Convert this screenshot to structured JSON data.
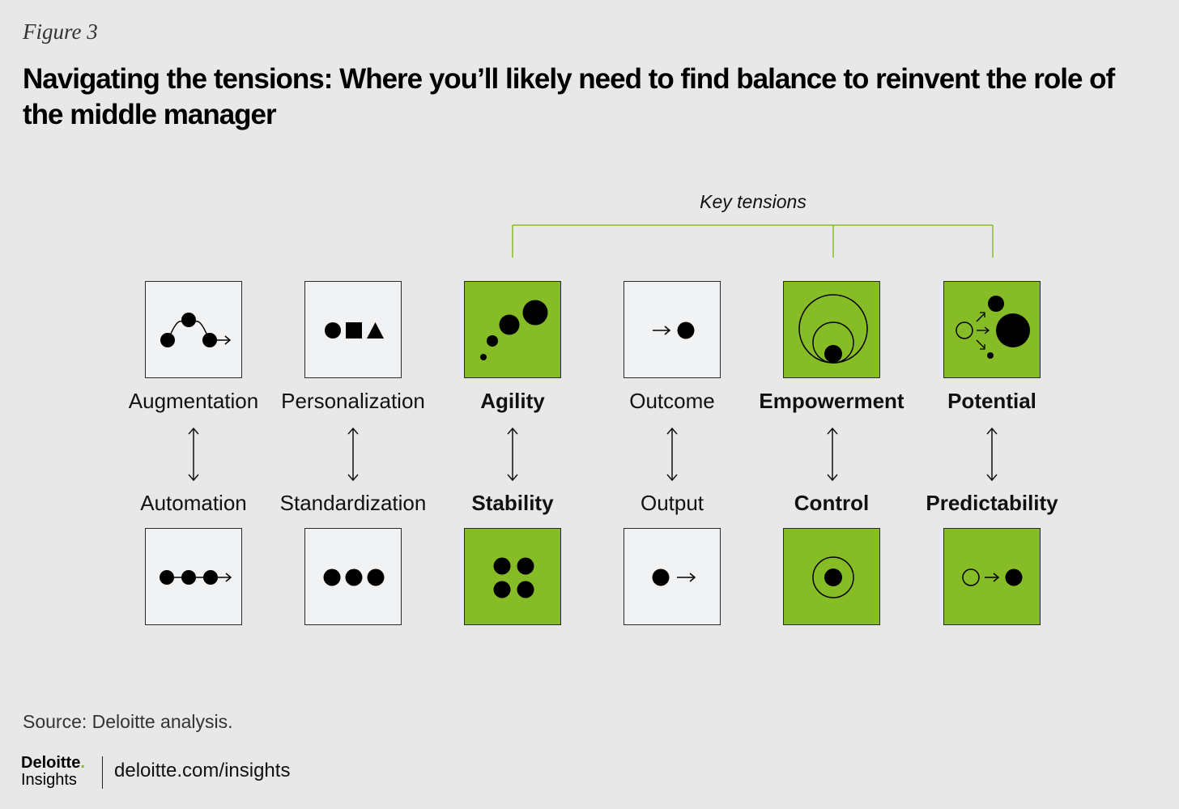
{
  "figure_label": "Figure 3",
  "title": "Navigating the tensions: Where you’ll likely need to find balance to reinvent the role of the middle manager",
  "key_tensions_label": "Key tensions",
  "pairs": [
    {
      "top": "Augmentation",
      "bottom": "Automation",
      "key_tension": false
    },
    {
      "top": "Personalization",
      "bottom": "Standardization",
      "key_tension": false
    },
    {
      "top": "Agility",
      "bottom": "Stability",
      "key_tension": true
    },
    {
      "top": "Outcome",
      "bottom": "Output",
      "key_tension": false
    },
    {
      "top": "Empowerment",
      "bottom": "Control",
      "key_tension": true
    },
    {
      "top": "Potential",
      "bottom": "Predictability",
      "key_tension": true
    }
  ],
  "colors": {
    "accent_green": "#86bc25",
    "box_neutral": "#f1f2f4",
    "background": "#e7e8e7",
    "bracket": "#86bc25"
  },
  "source": "Source: Deloitte analysis.",
  "brand": {
    "name": "Deloitte",
    "sub": "Insights",
    "url": "deloitte.com/insights"
  }
}
